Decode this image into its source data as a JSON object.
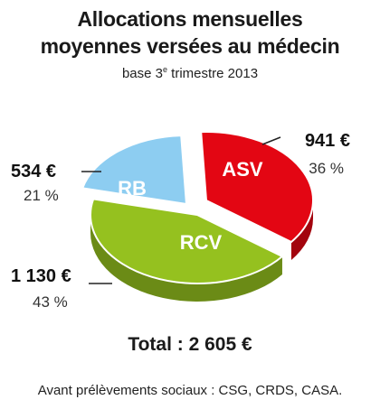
{
  "header": {
    "title_line1": "Allocations mensuelles",
    "title_line2": "moyennes versées au médecin",
    "subtitle_prefix": "base 3",
    "subtitle_sup": "e",
    "subtitle_suffix": " trimestre 2013"
  },
  "chart_data": {
    "type": "pie",
    "title": "Allocations mensuelles moyennes versées au médecin",
    "slices": [
      {
        "label": "ASV",
        "value": 941,
        "value_label": "941 €",
        "percent_label": "36 %",
        "color": "#e30613"
      },
      {
        "label": "RCV",
        "value": 1130,
        "value_label": "1 130 €",
        "percent_label": "43 %",
        "color": "#95c11f"
      },
      {
        "label": "RB",
        "value": 534,
        "value_label": "534 €",
        "percent_label": "21 %",
        "color": "#8dcdf1"
      }
    ]
  },
  "footer": {
    "total": "Total : 2 605 €",
    "note": "Avant prélèvements sociaux : CSG, CRDS, CASA."
  }
}
